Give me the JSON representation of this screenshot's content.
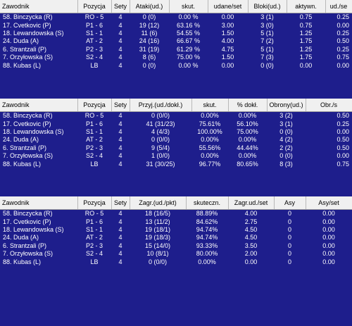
{
  "attack": {
    "headers": [
      "Zawodnik",
      "Pozycja",
      "Sety",
      "Ataki(ud.)",
      "skut.",
      "udane/set",
      "Bloki(ud.)",
      "aktywn.",
      "ud./se"
    ],
    "rows": [
      [
        "58. Binczycka (R)",
        "RO - 5",
        "4",
        "0 (0)",
        "0.00 %",
        "0.00",
        "3 (1)",
        "0.75",
        "0.25"
      ],
      [
        "17. Cvetkovic (P)",
        "P1 - 6",
        "4",
        "19 (12)",
        "63.16 %",
        "3.00",
        "3 (0)",
        "0.75",
        "0.00"
      ],
      [
        "18. Lewandowska (S)",
        "S1 - 1",
        "4",
        "11 (6)",
        "54.55 %",
        "1.50",
        "5 (1)",
        "1.25",
        "0.25"
      ],
      [
        "24. Duda (A)",
        "AT - 2",
        "4",
        "24 (16)",
        "66.67 %",
        "4.00",
        "7 (2)",
        "1.75",
        "0.50"
      ],
      [
        "6. Strantzali (P)",
        "P2 - 3",
        "4",
        "31 (19)",
        "61.29 %",
        "4.75",
        "5 (1)",
        "1.25",
        "0.25"
      ],
      [
        "7. Orzyłowska (S)",
        "S2 - 4",
        "4",
        "8 (6)",
        "75.00 %",
        "1.50",
        "7 (3)",
        "1.75",
        "0.75"
      ],
      [
        "88. Kubas (L)",
        "LB",
        "4",
        "0 (0)",
        "0.00 %",
        "0.00",
        "0 (0)",
        "0.00",
        "0.00"
      ]
    ]
  },
  "reception": {
    "headers": [
      "Zawodnik",
      "Pozycja",
      "Sety",
      "Przyj.(ud./dokł.)",
      "skut.",
      "% dokł.",
      "Obrony(ud.)",
      "Obr./s"
    ],
    "rows": [
      [
        "58. Binczycka (R)",
        "RO - 5",
        "4",
        "0 (0/0)",
        "0.00%",
        "0.00%",
        "3 (2)",
        "0.50"
      ],
      [
        "17. Cvetkovic (P)",
        "P1 - 6",
        "4",
        "41 (31/23)",
        "75.61%",
        "56.10%",
        "3 (1)",
        "0.25"
      ],
      [
        "18. Lewandowska (S)",
        "S1 - 1",
        "4",
        "4 (4/3)",
        "100.00%",
        "75.00%",
        "0 (0)",
        "0.00"
      ],
      [
        "24. Duda (A)",
        "AT - 2",
        "4",
        "0 (0/0)",
        "0.00%",
        "0.00%",
        "4 (2)",
        "0.50"
      ],
      [
        "6. Strantzali (P)",
        "P2 - 3",
        "4",
        "9 (5/4)",
        "55.56%",
        "44.44%",
        "2 (2)",
        "0.50"
      ],
      [
        "7. Orzyłowska (S)",
        "S2 - 4",
        "4",
        "1 (0/0)",
        "0.00%",
        "0.00%",
        "0 (0)",
        "0.00"
      ],
      [
        "88. Kubas (L)",
        "LB",
        "4",
        "31 (30/25)",
        "96.77%",
        "80.65%",
        "8 (3)",
        "0.75"
      ]
    ]
  },
  "serve": {
    "headers": [
      "Zawodnik",
      "Pozycja",
      "Sety",
      "Zagr.(ud./pkt)",
      "skuteczn.",
      "Zagr.ud./set",
      "Asy",
      "Asy/set"
    ],
    "rows": [
      [
        "58. Binczycka (R)",
        "RO - 5",
        "4",
        "18 (16/5)",
        "88.89%",
        "4.00",
        "0",
        "0.00"
      ],
      [
        "17. Cvetkovic (P)",
        "P1 - 6",
        "4",
        "13 (11/2)",
        "84.62%",
        "2.75",
        "0",
        "0.00"
      ],
      [
        "18. Lewandowska (S)",
        "S1 - 1",
        "4",
        "19 (18/1)",
        "94.74%",
        "4.50",
        "0",
        "0.00"
      ],
      [
        "24. Duda (A)",
        "AT - 2",
        "4",
        "19 (18/3)",
        "94.74%",
        "4.50",
        "0",
        "0.00"
      ],
      [
        "6. Strantzali (P)",
        "P2 - 3",
        "4",
        "15 (14/0)",
        "93.33%",
        "3.50",
        "0",
        "0.00"
      ],
      [
        "7. Orzyłowska (S)",
        "S2 - 4",
        "4",
        "10 (8/1)",
        "80.00%",
        "2.00",
        "0",
        "0.00"
      ],
      [
        "88. Kubas (L)",
        "LB",
        "4",
        "0 (0/0)",
        "0.00%",
        "0.00",
        "0",
        "0.00"
      ]
    ]
  }
}
